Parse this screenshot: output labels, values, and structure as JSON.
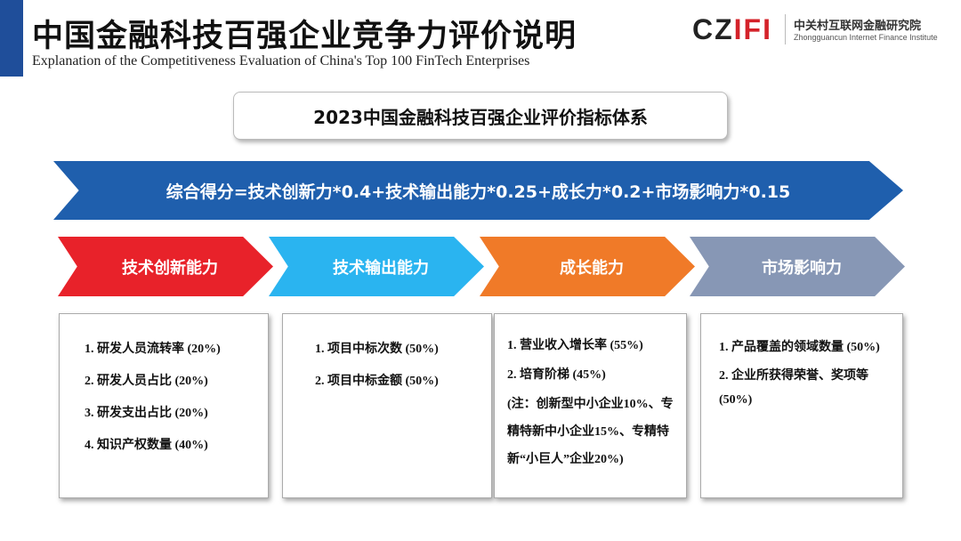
{
  "header": {
    "title": "中国金融科技百强企业竞争力评价说明",
    "subtitle": "Explanation of the Competitiveness Evaluation of China's Top 100 FinTech Enterprises",
    "accent": "#1f4e9a"
  },
  "logo": {
    "mark": "CZIFI",
    "name_cn": "中关村互联网金融研究院",
    "name_en": "Zhongguancun Internet Finance Institute"
  },
  "system_title": "2023中国金融科技百强企业评价指标体系",
  "formula": "综合得分=技术创新力*0.4+技术输出能力*0.25+成长力*0.2+市场影响力*0.15",
  "categories": [
    {
      "label": "技术创新能力",
      "color": "#e8222a",
      "items": [
        "1. 研发人员流转率 (20%)",
        "2. 研发人员占比 (20%)",
        "3. 研发支出占比 (20%)",
        "4. 知识产权数量 (40%)"
      ]
    },
    {
      "label": "技术输出能力",
      "color": "#2ab4f0",
      "items": [
        "1. 项目中标次数 (50%)",
        "2. 项目中标金额 (50%)"
      ]
    },
    {
      "label": "成长能力",
      "color": "#f07a28",
      "items": [
        "1. 营业收入增长率 (55%)",
        "2. 培育阶梯 (45%)",
        "(注：创新型中小企业10%、专精特新中小企业15%、专精特新“小巨人”企业20%)"
      ]
    },
    {
      "label": "市场影响力",
      "color": "#8797b5",
      "items": [
        "1. 产品覆盖的领域数量 (50%)",
        "2. 企业所获得荣誉、奖项等 (50%)"
      ]
    }
  ]
}
